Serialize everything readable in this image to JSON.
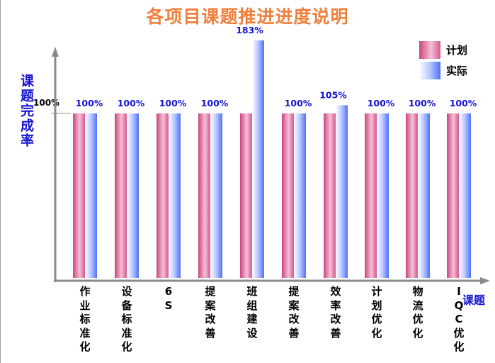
{
  "title": "各项目课题推进进度说明",
  "chart_data": {
    "type": "bar",
    "title": "各项目课题推进进度说明",
    "ylabel": "课题完成率",
    "xlabel": "课题",
    "reference_tick": "100%",
    "categories": [
      "作业标准化",
      "设备标准化",
      "6S",
      "提案改善",
      "班组建设",
      "提案改善",
      "效率改善",
      "计划优化",
      "物流优化",
      "IQC优化"
    ],
    "series": [
      {
        "name": "计划",
        "values": [
          100,
          100,
          100,
          100,
          100,
          100,
          100,
          100,
          100,
          100
        ],
        "color": "#e0669e"
      },
      {
        "name": "实际",
        "values": [
          100,
          100,
          100,
          100,
          183,
          100,
          105,
          100,
          100,
          100
        ],
        "color": "#5b7fff"
      }
    ],
    "data_labels": [
      "100%",
      "100%",
      "100%",
      "100%",
      "183%",
      "100%",
      "105%",
      "100%",
      "100%",
      "100%"
    ],
    "grid": false,
    "legend_position": "top-right"
  }
}
